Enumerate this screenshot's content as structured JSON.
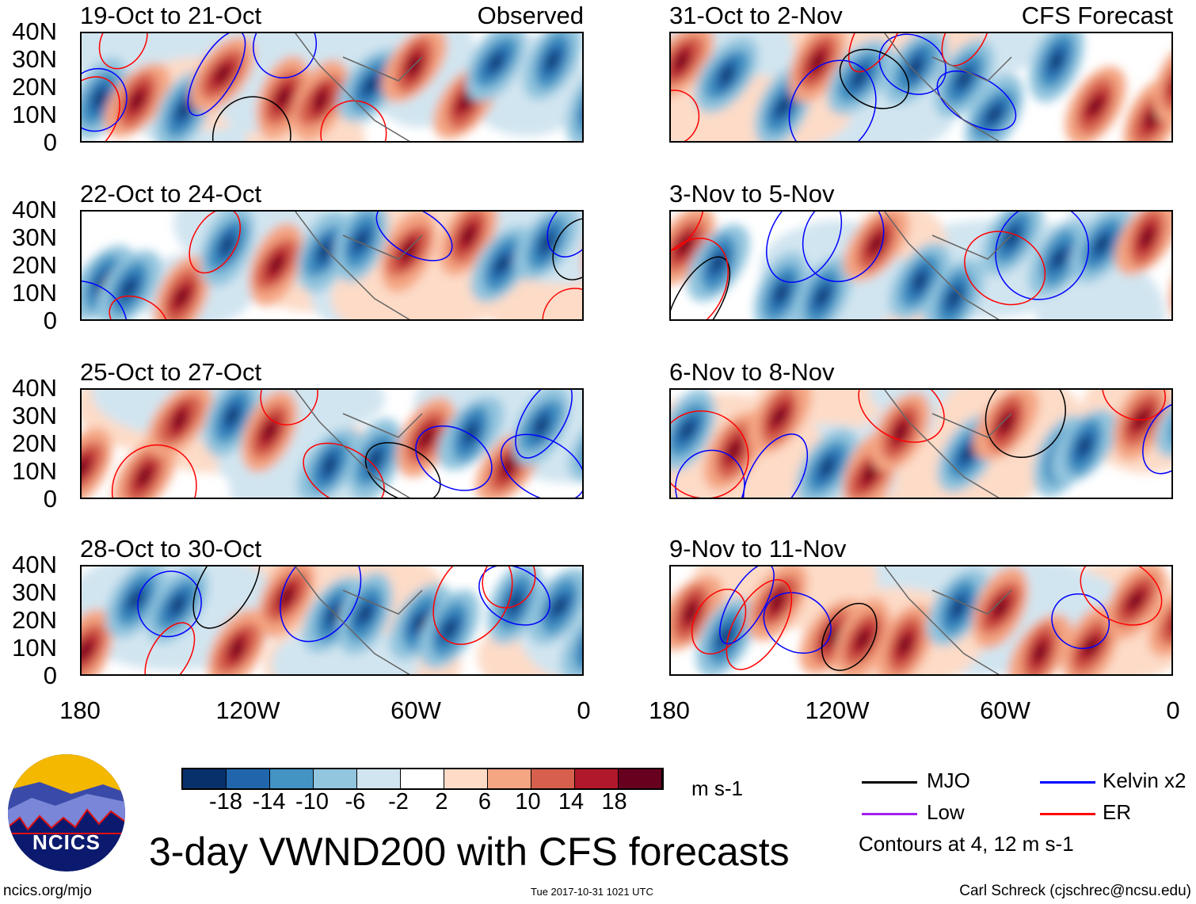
{
  "title": "3-day VWND200 with CFS forecasts",
  "observed_label": "Observed",
  "forecast_label": "CFS Forecast",
  "panels_left": [
    "19-Oct to 21-Oct",
    "22-Oct to 24-Oct",
    "25-Oct to 27-Oct",
    "28-Oct to 30-Oct"
  ],
  "panels_right": [
    "31-Oct to 2-Nov",
    "3-Nov to 5-Nov",
    "6-Nov to 8-Nov",
    "9-Nov to 11-Nov"
  ],
  "lat_labels": [
    "40N",
    "30N",
    "20N",
    "10N",
    "0"
  ],
  "lon_labels": [
    "180",
    "120W",
    "60W",
    "0"
  ],
  "colorbar": {
    "colors": [
      "#08306b",
      "#2166ac",
      "#4393c3",
      "#92c5de",
      "#d1e5f0",
      "#ffffff",
      "#fddbc7",
      "#f4a582",
      "#d6604d",
      "#b2182b",
      "#67001f"
    ],
    "ticks": [
      "-18",
      "-14",
      "-10",
      "-6",
      "-2",
      "2",
      "6",
      "10",
      "14",
      "18"
    ],
    "units": "m s-1"
  },
  "legend": {
    "items": [
      {
        "label": "MJO",
        "color": "#000000"
      },
      {
        "label": "Kelvin x2",
        "color": "#0000ff"
      },
      {
        "label": "Low",
        "color": "#a020f0"
      },
      {
        "label": "ER",
        "color": "#ff0000"
      }
    ],
    "note": "Contours at 4, 12 m s-1"
  },
  "logo_text": "NCICS",
  "footer": {
    "left": "ncics.org/mjo",
    "center": "Tue 2017-10-31 1021 UTC",
    "right": "Carl Schreck (cjschrec@ncsu.edu)"
  }
}
